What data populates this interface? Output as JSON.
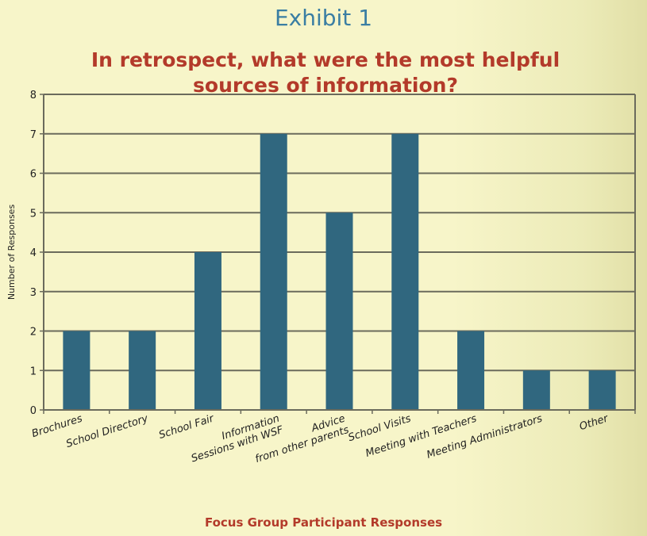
{
  "header": {
    "exhibit": "Exhibit 1"
  },
  "chart_data": {
    "type": "bar",
    "title": "In retrospect, what were the most helpful sources of information?",
    "xlabel": "Focus Group Participant Responses",
    "ylabel": "Number of Responses",
    "categories": [
      [
        "Brochures"
      ],
      [
        "School Directory"
      ],
      [
        "School Fair"
      ],
      [
        "Information",
        "Sessions with WSF"
      ],
      [
        "Advice",
        "from other parents"
      ],
      [
        "School Visits"
      ],
      [
        "Meeting with Teachers"
      ],
      [
        "Meeting Administrators"
      ],
      [
        "Other"
      ]
    ],
    "values": [
      2,
      2,
      4,
      7,
      5,
      7,
      2,
      1,
      1
    ],
    "ylim": [
      0,
      8
    ],
    "yticks": [
      "0",
      "1",
      "2",
      "3",
      "4",
      "5",
      "6",
      "7",
      "8"
    ],
    "grid": true,
    "colors": {
      "bar": "#30677f",
      "grid": "#6b6b5c",
      "axis": "#6b6b5c",
      "tick_text": "#222222"
    }
  }
}
